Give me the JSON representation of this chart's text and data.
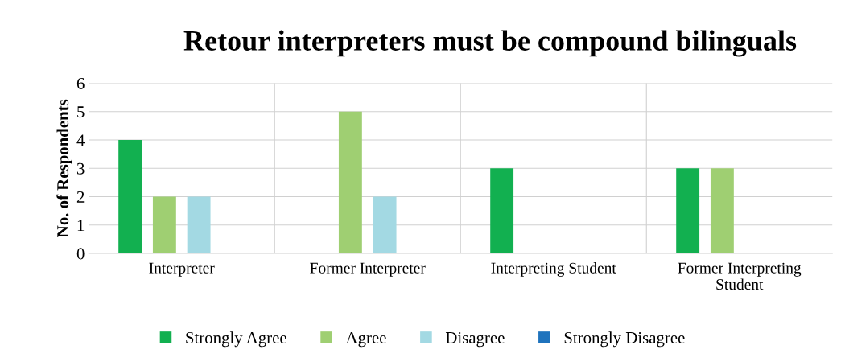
{
  "chart_data": {
    "type": "bar",
    "title": "Retour interpreters must be compound bilinguals",
    "ylabel": "No. of Respondents",
    "categories": [
      "Interpreter",
      "Former Interpreter",
      "Interpreting Student",
      "Former Interpreting\nStudent"
    ],
    "series": [
      {
        "name": "Strongly Agree",
        "color": "#12b050",
        "values": [
          4,
          0,
          3,
          3
        ]
      },
      {
        "name": "Agree",
        "color": "#9fcf72",
        "values": [
          2,
          5,
          0,
          3
        ]
      },
      {
        "name": "Disagree",
        "color": "#a3d9e3",
        "values": [
          2,
          2,
          0,
          0
        ]
      },
      {
        "name": "Strongly Disagree",
        "color": "#1f73bd",
        "values": [
          0,
          0,
          0,
          0
        ]
      }
    ],
    "ylim": [
      0,
      6
    ],
    "yticks": [
      0,
      1,
      2,
      3,
      4,
      5,
      6
    ],
    "grid": true,
    "legend": "bottom"
  }
}
